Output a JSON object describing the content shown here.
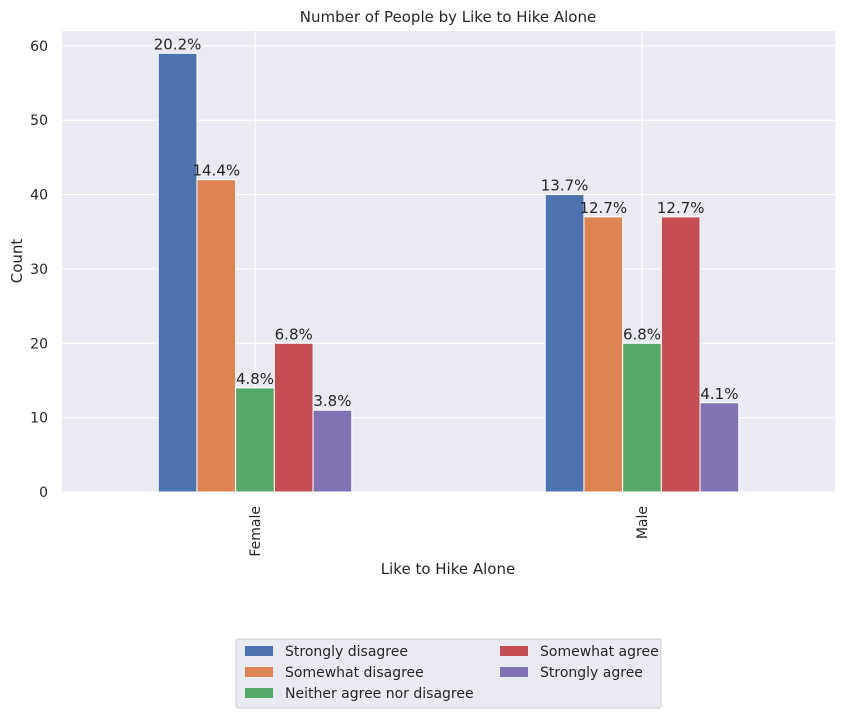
{
  "chart_data": {
    "type": "bar",
    "title": "Number of People by Like to Hike Alone",
    "xlabel": "Like to Hike Alone",
    "ylabel": "Count",
    "categories": [
      "Female",
      "Male"
    ],
    "ylim": [
      0,
      62
    ],
    "yticks": [
      0,
      10,
      20,
      30,
      40,
      50,
      60
    ],
    "grid": true,
    "legend_position": "bottom-center",
    "series": [
      {
        "name": "Strongly disagree",
        "color": "#4c72b0",
        "values": [
          59,
          40
        ],
        "labels": [
          "20.2%",
          "13.7%"
        ]
      },
      {
        "name": "Somewhat disagree",
        "color": "#dd8452",
        "values": [
          42,
          37
        ],
        "labels": [
          "14.4%",
          "12.7%"
        ]
      },
      {
        "name": "Neither agree nor disagree",
        "color": "#55a868",
        "values": [
          14,
          20
        ],
        "labels": [
          "4.8%",
          "6.8%"
        ]
      },
      {
        "name": "Somewhat agree",
        "color": "#c44e52",
        "values": [
          20,
          37
        ],
        "labels": [
          "6.8%",
          "12.7%"
        ]
      },
      {
        "name": "Strongly agree",
        "color": "#8172b3",
        "values": [
          11,
          12
        ],
        "labels": [
          "3.8%",
          "4.1%"
        ]
      }
    ]
  }
}
